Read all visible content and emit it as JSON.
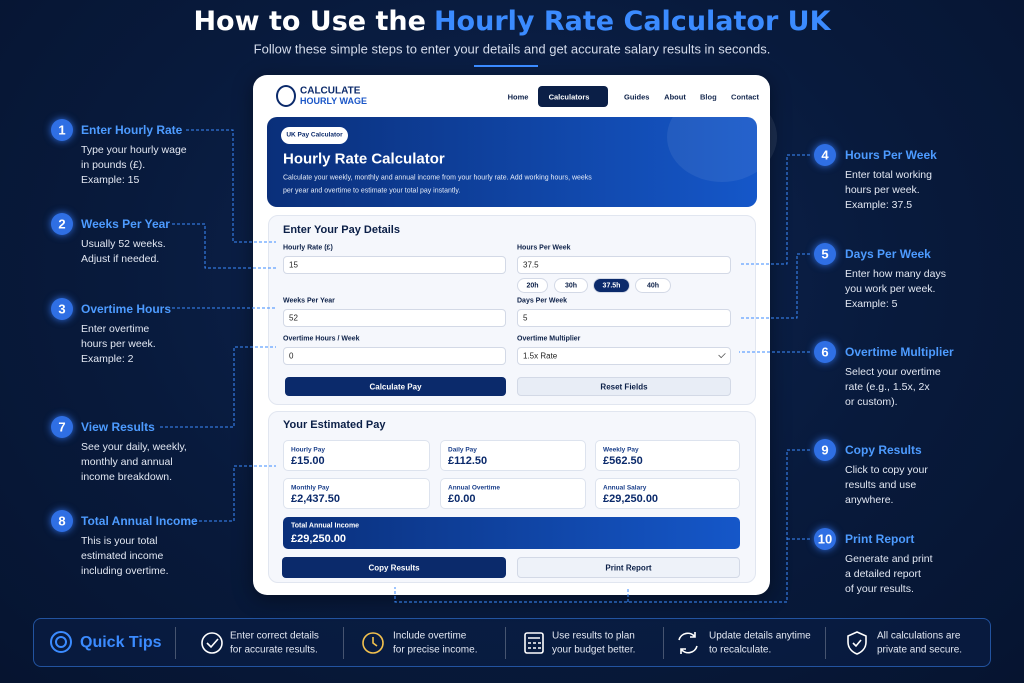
{
  "header": {
    "title_prefix": "How to Use the",
    "title_highlight": "Hourly Rate Calculator UK",
    "subtitle": "Follow these simple steps to enter your details and get accurate salary results in seconds."
  },
  "steps": [
    {
      "number": "1",
      "title": "Enter Hourly Rate",
      "lines": [
        "Type your hourly wage",
        "in pounds (£).",
        "Example:  15"
      ]
    },
    {
      "number": "2",
      "title": "Weeks Per Year",
      "lines": [
        "Usually 52 weeks.",
        "Adjust if needed."
      ]
    },
    {
      "number": "3",
      "title": "Overtime Hours",
      "lines": [
        "Enter overtime",
        "hours per week.",
        "Example:  2"
      ]
    },
    {
      "number": "4",
      "title": "Hours Per Week",
      "lines": [
        "Enter total working",
        "hours per week.",
        "Example:  37.5"
      ]
    },
    {
      "number": "5",
      "title": "Days Per Week",
      "lines": [
        "Enter how many days",
        "you work per week.",
        "Example:  5"
      ]
    },
    {
      "number": "6",
      "title": "Overtime Multiplier",
      "lines": [
        "Select your overtime",
        "rate (e.g., 1.5x, 2x",
        "or custom)."
      ]
    },
    {
      "number": "7",
      "title": "View Results",
      "lines": [
        "See your daily, weekly,",
        "monthly and annual",
        "income breakdown."
      ]
    },
    {
      "number": "8",
      "title": "Total Annual Income",
      "lines": [
        "This is your total",
        "estimated income",
        "including overtime."
      ]
    },
    {
      "number": "9",
      "title": "Copy Results",
      "lines": [
        "Click to copy your",
        "results and use",
        "anywhere."
      ]
    },
    {
      "number": "10",
      "title": "Print Report",
      "lines": [
        "Generate and print",
        "a detailed report",
        "of your results."
      ]
    }
  ],
  "app": {
    "logo": [
      "CALCULATE",
      "HOURLY WAGE"
    ],
    "nav": [
      "Home",
      "Calculators",
      "Guides",
      "About",
      "Blog",
      "Contact"
    ],
    "hero": {
      "badge": "UK Pay Calculator",
      "title": "Hourly Rate Calculator",
      "description": [
        "Calculate your weekly, monthly and annual income from your hourly rate. Add working hours, weeks",
        "per year and overtime to estimate your total pay instantly."
      ]
    },
    "form": {
      "title": "Enter Your Pay Details",
      "fields": [
        {
          "label": "Hourly Rate (£)",
          "value": "15"
        },
        {
          "label": "Hours Per Week",
          "value": "37.5"
        },
        {
          "label": "Weeks Per Year",
          "value": "52"
        },
        {
          "label": "Days Per Week",
          "value": "5"
        },
        {
          "label": "Overtime Hours / Week",
          "value": "0"
        },
        {
          "label": "Overtime Multiplier",
          "value": "1.5x Rate"
        }
      ],
      "hour_buttons": [
        "20h",
        "30h",
        "37.5h",
        "40h"
      ],
      "calculate": "Calculate Pay",
      "reset": "Reset Fields"
    },
    "results": {
      "title": "Your Estimated Pay",
      "cards": [
        {
          "label": "Hourly Pay",
          "value": "£15.00"
        },
        {
          "label": "Daily Pay",
          "value": "£112.50"
        },
        {
          "label": "Weekly Pay",
          "value": "£562.50"
        },
        {
          "label": "Monthly Pay",
          "value": "£2,437.50"
        },
        {
          "label": "Annual Overtime",
          "value": "£0.00"
        },
        {
          "label": "Annual Salary",
          "value": "£29,250.00"
        }
      ],
      "total": {
        "label": "Total Annual Income",
        "value": "£29,250.00"
      },
      "copy": "Copy Results",
      "print": "Print Report"
    }
  },
  "tips": {
    "title": "Quick Tips",
    "items": [
      [
        "Enter correct details",
        "for accurate results."
      ],
      [
        "Include overtime",
        "for precise income."
      ],
      [
        "Use results to plan",
        "your budget better."
      ],
      [
        "Update details anytime",
        "to recalculate."
      ],
      [
        "All calculations are",
        "private and secure."
      ]
    ]
  }
}
